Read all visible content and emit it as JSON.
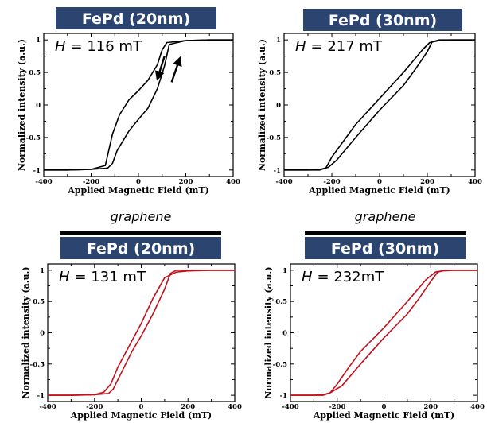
{
  "chart_data": [
    {
      "type": "line",
      "title": "FePd (20nm)",
      "annotation": {
        "label": "H",
        "value": "= 116 mT"
      },
      "substrate_label": "",
      "xlabel": "Applied Magnetic Field (mT)",
      "ylabel": "Normalized intensity (a.u.)",
      "xlim": [
        -400,
        400
      ],
      "ylim": [
        -1.1,
        1.1
      ],
      "xticks": [
        -400,
        -200,
        0,
        200,
        400
      ],
      "yticks": [
        -1,
        -0.5,
        0,
        0.5,
        1
      ],
      "line_color": "#000000",
      "arrows": true,
      "series": [
        {
          "branch": "descending",
          "x": [
            400,
            300,
            200,
            120,
            100,
            80,
            40,
            0,
            -40,
            -80,
            -110,
            -140,
            -200,
            -300,
            -400
          ],
          "y": [
            1,
            1,
            0.99,
            0.96,
            0.85,
            0.62,
            0.38,
            0.22,
            0.08,
            -0.15,
            -0.45,
            -0.93,
            -0.99,
            -1,
            -1
          ]
        },
        {
          "branch": "ascending",
          "x": [
            -400,
            -300,
            -200,
            -130,
            -110,
            -90,
            -40,
            0,
            40,
            80,
            110,
            130,
            200,
            300,
            400
          ],
          "y": [
            -1,
            -1,
            -0.99,
            -0.97,
            -0.9,
            -0.7,
            -0.4,
            -0.22,
            -0.05,
            0.25,
            0.6,
            0.93,
            0.99,
            1,
            1
          ]
        }
      ]
    },
    {
      "type": "line",
      "title": "FePd (30nm)",
      "annotation": {
        "label": "H",
        "value": "= 217 mT"
      },
      "substrate_label": "",
      "xlabel": "Applied Magnetic Field (mT)",
      "ylabel": "Normalized intensity (a.u.)",
      "xlim": [
        -400,
        400
      ],
      "ylim": [
        -1.1,
        1.1
      ],
      "xticks": [
        -400,
        -200,
        0,
        200,
        400
      ],
      "yticks": [
        -1,
        -0.5,
        0,
        0.5,
        1
      ],
      "line_color": "#000000",
      "arrows": false,
      "series": [
        {
          "branch": "descending",
          "x": [
            400,
            300,
            250,
            210,
            180,
            100,
            0,
            -100,
            -150,
            -200,
            -225,
            -250,
            -300,
            -400
          ],
          "y": [
            1,
            1,
            0.99,
            0.96,
            0.85,
            0.5,
            0.1,
            -0.3,
            -0.55,
            -0.8,
            -0.97,
            -1,
            -1,
            -1
          ]
        },
        {
          "branch": "ascending",
          "x": [
            -400,
            -300,
            -250,
            -215,
            -180,
            -100,
            0,
            100,
            150,
            200,
            220,
            250,
            300,
            400
          ],
          "y": [
            -1,
            -1,
            -0.99,
            -0.96,
            -0.85,
            -0.5,
            -0.08,
            0.3,
            0.55,
            0.82,
            0.97,
            1,
            1,
            1
          ]
        }
      ]
    },
    {
      "type": "line",
      "title": "FePd (20nm)",
      "annotation": {
        "label": "H",
        "value": "= 131 mT"
      },
      "substrate_label": "graphene",
      "xlabel": "Applied Magnetic Field (mT)",
      "ylabel": "Normalized intensity (a.u.)",
      "xlim": [
        -400,
        400
      ],
      "ylim": [
        -1.1,
        1.1
      ],
      "xticks": [
        -400,
        -200,
        0,
        200,
        400
      ],
      "yticks": [
        -1,
        -0.5,
        0,
        0.5,
        1
      ],
      "line_color": "#c0121c",
      "arrows": false,
      "series": [
        {
          "branch": "descending",
          "x": [
            400,
            300,
            200,
            150,
            100,
            50,
            0,
            -50,
            -100,
            -130,
            -160,
            -200,
            -300,
            -400
          ],
          "y": [
            1,
            1,
            0.99,
            0.97,
            0.88,
            0.55,
            0.15,
            -0.2,
            -0.55,
            -0.82,
            -0.95,
            -0.99,
            -1,
            -1
          ]
        },
        {
          "branch": "ascending",
          "x": [
            -400,
            -300,
            -200,
            -140,
            -120,
            -80,
            -40,
            0,
            50,
            100,
            125,
            150,
            200,
            300,
            400
          ],
          "y": [
            -1,
            -1,
            -0.99,
            -0.97,
            -0.9,
            -0.6,
            -0.3,
            -0.05,
            0.3,
            0.7,
            0.95,
            1,
            1,
            1,
            1
          ]
        }
      ]
    },
    {
      "type": "line",
      "title": "FePd (30nm)",
      "annotation": {
        "label": "H",
        "value": "= 232mT"
      },
      "substrate_label": "graphene",
      "xlabel": "Applied Magnetic Field (mT)",
      "ylabel": "Normalized intensity (a.u.)",
      "xlim": [
        -400,
        400
      ],
      "ylim": [
        -1.1,
        1.1
      ],
      "xticks": [
        -400,
        -200,
        0,
        200,
        400
      ],
      "yticks": [
        -1,
        -0.5,
        0,
        0.5,
        1
      ],
      "line_color": "#c0121c",
      "arrows": false,
      "series": [
        {
          "branch": "descending",
          "x": [
            400,
            300,
            250,
            220,
            180,
            100,
            0,
            -100,
            -150,
            -200,
            -230,
            -260,
            -300,
            -400
          ],
          "y": [
            1,
            1,
            0.99,
            0.97,
            0.85,
            0.5,
            0.08,
            -0.3,
            -0.55,
            -0.82,
            -0.96,
            -1,
            -1,
            -1
          ]
        },
        {
          "branch": "ascending",
          "x": [
            -400,
            -300,
            -260,
            -230,
            -180,
            -100,
            0,
            100,
            150,
            200,
            230,
            260,
            300,
            400
          ],
          "y": [
            -1,
            -1,
            -0.99,
            -0.96,
            -0.85,
            -0.5,
            -0.08,
            0.3,
            0.55,
            0.82,
            0.97,
            1,
            1,
            1
          ]
        }
      ]
    }
  ]
}
